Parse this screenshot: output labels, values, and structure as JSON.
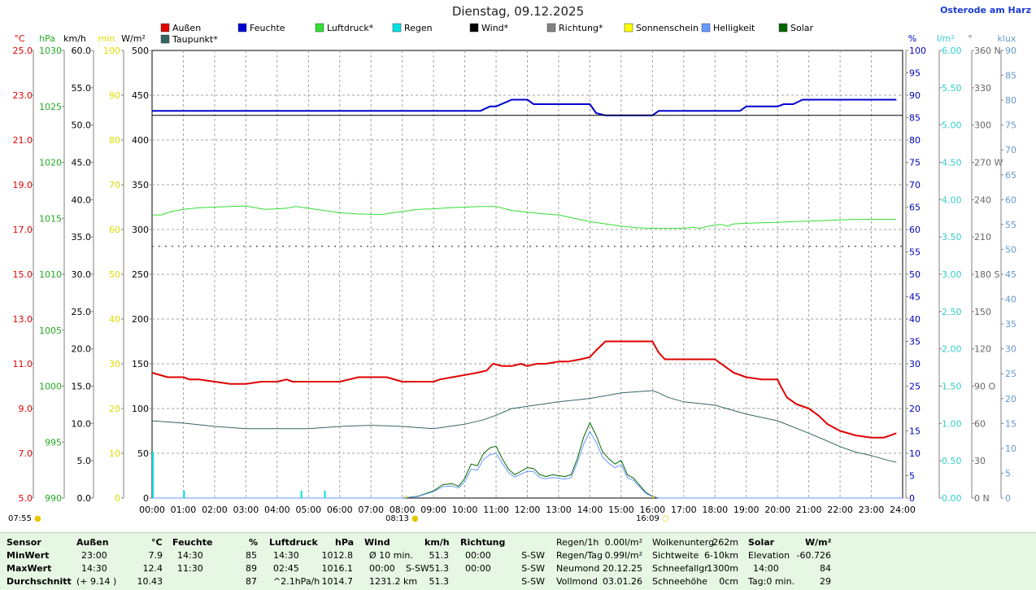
{
  "header": {
    "title": "Dienstag, 09.12.2025",
    "site": "Osterode am Harz"
  },
  "legend": [
    {
      "name": "Außen",
      "color": "#e00000"
    },
    {
      "name": "Feuchte",
      "color": "#0000d0"
    },
    {
      "name": "Luftdruck*",
      "color": "#33dd33"
    },
    {
      "name": "Regen",
      "color": "#00e0e0"
    },
    {
      "name": "Wind*",
      "color": "#000000"
    },
    {
      "name": "Richtung*",
      "color": "#808080"
    },
    {
      "name": "Sonnenschein",
      "color": "#ffff00"
    },
    {
      "name": "Helligkeit",
      "color": "#6699ff"
    },
    {
      "name": "Solar",
      "color": "#006600"
    },
    {
      "name": "Taupunkt*",
      "color": "#336666"
    }
  ],
  "axes": {
    "left": [
      {
        "unit": "°C",
        "color": "#e00000",
        "ticks": [
          "25.0",
          "23.0",
          "21.0",
          "19.0",
          "17.0",
          "15.0",
          "13.0",
          "11.0",
          "9.0",
          "7.0",
          "5.0"
        ]
      },
      {
        "unit": "hPa",
        "color": "#22aa22",
        "ticks": [
          "1030",
          "1025",
          "1020",
          "1015",
          "1010",
          "1005",
          "1000",
          "995",
          "990"
        ]
      },
      {
        "unit": "km/h",
        "color": "#000000",
        "ticks": [
          "60.0",
          "55.0",
          "50.0",
          "45.0",
          "40.0",
          "35.0",
          "30.0",
          "25.0",
          "20.0",
          "15.0",
          "10.0",
          "5.0",
          "0.0"
        ]
      },
      {
        "unit": "min",
        "color": "#dddd00",
        "ticks": [
          "100",
          "90",
          "80",
          "70",
          "60",
          "50",
          "40",
          "30",
          "20",
          "10",
          "0"
        ]
      },
      {
        "unit": "W/m²",
        "color": "#000000",
        "ticks": [
          "500",
          "450",
          "400",
          "350",
          "300",
          "250",
          "200",
          "150",
          "100",
          "50",
          "0"
        ]
      }
    ],
    "right": [
      {
        "unit": "%",
        "color": "#0000c0",
        "ticks": [
          "100",
          "95",
          "90",
          "85",
          "80",
          "75",
          "70",
          "65",
          "60",
          "55",
          "50",
          "45",
          "40",
          "35",
          "30",
          "25",
          "20",
          "15",
          "10",
          "5",
          "0"
        ]
      },
      {
        "unit": "l/m²",
        "color": "#33cccc",
        "ticks": [
          "6.00",
          "5.50",
          "5.00",
          "4.50",
          "4.00",
          "3.50",
          "3.00",
          "2.50",
          "2.00",
          "1.50",
          "1.00",
          "0.50",
          "0.00"
        ]
      },
      {
        "unit": "°",
        "color": "#666666",
        "ticks": [
          "360 N",
          "330",
          "300",
          "270 W",
          "240",
          "210",
          "180 S",
          "150",
          "120",
          "90 O",
          "60",
          "30",
          "0 N"
        ]
      },
      {
        "unit": "klux",
        "color": "#6699cc",
        "ticks": [
          "90",
          "85",
          "80",
          "75",
          "70",
          "65",
          "60",
          "55",
          "50",
          "45",
          "40",
          "35",
          "30",
          "25",
          "20",
          "15",
          "10",
          "5",
          "0"
        ]
      }
    ],
    "x_ticks": [
      "00:00",
      "01:00",
      "02:00",
      "03:00",
      "04:00",
      "05:00",
      "06:00",
      "07:00",
      "08:00",
      "09:00",
      "10:00",
      "11:00",
      "12:00",
      "13:00",
      "14:00",
      "15:00",
      "16:00",
      "17:00",
      "18:00",
      "19:00",
      "20:00",
      "21:00",
      "22:00",
      "23:00",
      "24:00"
    ]
  },
  "sun": {
    "sunrise_marker": "07:55",
    "sunrise": "08:13",
    "sunset": "16:09"
  },
  "chart_data": {
    "type": "line",
    "x_unit": "hours",
    "series": [
      {
        "name": "Außen",
        "unit": "°C",
        "x": [
          0,
          0.5,
          1,
          1.2,
          1.5,
          2,
          2.5,
          3,
          3.5,
          4,
          4.3,
          4.5,
          5,
          5.5,
          6,
          6.3,
          6.6,
          7,
          7.5,
          8,
          8.5,
          9,
          9.2,
          9.6,
          10,
          10.4,
          10.7,
          10.9,
          11.2,
          11.5,
          11.8,
          12,
          12.3,
          12.6,
          13,
          13.3,
          13.7,
          14,
          14.2,
          14.5,
          15,
          15.5,
          16,
          16.2,
          16.4,
          17,
          17.5,
          18,
          18.3,
          18.6,
          19,
          19.5,
          20,
          20.1,
          20.3,
          20.6,
          21,
          21.3,
          21.6,
          22,
          22.5,
          23,
          23.4,
          23.8
        ],
        "y": [
          10.6,
          10.4,
          10.4,
          10.3,
          10.3,
          10.2,
          10.1,
          10.1,
          10.2,
          10.2,
          10.3,
          10.2,
          10.2,
          10.2,
          10.2,
          10.3,
          10.4,
          10.4,
          10.4,
          10.2,
          10.2,
          10.2,
          10.3,
          10.4,
          10.5,
          10.6,
          10.7,
          11.0,
          10.9,
          10.9,
          11.0,
          10.9,
          11.0,
          11.0,
          11.1,
          11.1,
          11.2,
          11.3,
          11.6,
          12.0,
          12.0,
          12.0,
          12.0,
          11.5,
          11.2,
          11.2,
          11.2,
          11.2,
          10.9,
          10.6,
          10.4,
          10.3,
          10.3,
          10.0,
          9.5,
          9.2,
          9.0,
          8.7,
          8.3,
          8.0,
          7.8,
          7.7,
          7.7,
          7.9
        ]
      },
      {
        "name": "Taupunkt*",
        "unit": "°C",
        "x": [
          0,
          1,
          2,
          3,
          4,
          5,
          6,
          7,
          8,
          9,
          9.5,
          10,
          10.6,
          11,
          11.5,
          12,
          13,
          14,
          15,
          15.5,
          16,
          16.2,
          16.5,
          17,
          18,
          19,
          20,
          21,
          21.5,
          22,
          22.5,
          23,
          23.5,
          23.8
        ],
        "y": [
          8.45,
          8.35,
          8.2,
          8.1,
          8.1,
          8.1,
          8.2,
          8.25,
          8.2,
          8.1,
          8.2,
          8.3,
          8.5,
          8.7,
          9.0,
          9.1,
          9.3,
          9.45,
          9.7,
          9.75,
          9.8,
          9.7,
          9.5,
          9.3,
          9.15,
          8.75,
          8.45,
          7.9,
          7.6,
          7.3,
          7.05,
          6.9,
          6.7,
          6.6
        ]
      },
      {
        "name": "Feuchte",
        "unit": "%",
        "x": [
          0,
          10.5,
          10.8,
          11,
          11.5,
          12,
          12.2,
          12.5,
          13,
          13.5,
          14,
          14.2,
          14.5,
          15,
          15.5,
          16,
          16.2,
          16.5,
          17,
          17.5,
          18,
          18.8,
          19,
          19.5,
          20,
          20.2,
          20.5,
          20.8,
          21,
          21.5,
          22,
          22.5,
          23,
          23.5,
          23.8
        ],
        "y": [
          86.5,
          86.5,
          87.5,
          87.5,
          89,
          89,
          88,
          88,
          88,
          88,
          88,
          86,
          85.5,
          85.5,
          85.5,
          85.5,
          86.5,
          86.5,
          86.5,
          86.5,
          86.5,
          86.5,
          87.5,
          87.5,
          87.5,
          88,
          88,
          89,
          89,
          89,
          89,
          89,
          89,
          89,
          89
        ]
      },
      {
        "name": "Luftdruck*",
        "unit": "hPa",
        "x": [
          0,
          0.3,
          0.6,
          1,
          1.5,
          2,
          2.5,
          3,
          3.3,
          3.6,
          4,
          4.3,
          4.6,
          5,
          5.5,
          6,
          6.5,
          7,
          7.4,
          7.7,
          8,
          8.5,
          9,
          9.5,
          10,
          10.5,
          11,
          11.5,
          12,
          12.5,
          13,
          13.5,
          14,
          14.5,
          15,
          15.5,
          16,
          16.5,
          17,
          17.3,
          17.5,
          17.8,
          18,
          18.2,
          18.4,
          18.6,
          19,
          19.5,
          20,
          20.5,
          21,
          21.5,
          22,
          22.5,
          23,
          23.5,
          23.8
        ],
        "y": [
          1015.3,
          1015.3,
          1015.6,
          1015.8,
          1015.95,
          1016.0,
          1016.05,
          1016.1,
          1015.95,
          1015.8,
          1015.85,
          1015.9,
          1016.05,
          1015.9,
          1015.7,
          1015.5,
          1015.4,
          1015.35,
          1015.35,
          1015.5,
          1015.6,
          1015.8,
          1015.85,
          1015.95,
          1016.0,
          1016.05,
          1016.05,
          1015.7,
          1015.55,
          1015.4,
          1015.3,
          1015.0,
          1014.7,
          1014.5,
          1014.3,
          1014.15,
          1014.1,
          1014.1,
          1014.1,
          1014.2,
          1014.1,
          1014.3,
          1014.4,
          1014.45,
          1014.3,
          1014.5,
          1014.55,
          1014.6,
          1014.65,
          1014.7,
          1014.75,
          1014.8,
          1014.85,
          1014.9,
          1014.9,
          1014.9,
          1014.9
        ]
      },
      {
        "name": "Solar",
        "unit": "W/m²",
        "x": [
          0,
          8,
          8.5,
          9,
          9.3,
          9.6,
          9.8,
          10,
          10.2,
          10.4,
          10.6,
          10.8,
          11,
          11.2,
          11.4,
          11.6,
          11.8,
          12,
          12.2,
          12.4,
          12.6,
          12.8,
          13,
          13.2,
          13.4,
          13.6,
          13.8,
          14,
          14.2,
          14.4,
          14.6,
          14.8,
          15,
          15.2,
          15.4,
          15.6,
          15.8,
          16,
          16.2,
          16.4,
          24
        ],
        "y": [
          0,
          0,
          2,
          8,
          15,
          16,
          13,
          22,
          38,
          36,
          50,
          56,
          58,
          44,
          32,
          26,
          30,
          34,
          33,
          26,
          24,
          26,
          25,
          24,
          26,
          44,
          68,
          84,
          70,
          52,
          44,
          38,
          42,
          26,
          22,
          14,
          6,
          2,
          0,
          0,
          0
        ]
      },
      {
        "name": "Helligkeit",
        "unit": "klux",
        "x": [
          0,
          8,
          8.5,
          9,
          9.3,
          9.6,
          9.8,
          10,
          10.2,
          10.4,
          10.6,
          10.8,
          11,
          11.2,
          11.4,
          11.6,
          11.8,
          12,
          12.2,
          12.4,
          12.6,
          12.8,
          13,
          13.2,
          13.4,
          13.6,
          13.8,
          14,
          14.2,
          14.4,
          14.6,
          14.8,
          15,
          15.2,
          15.4,
          15.6,
          15.8,
          16,
          16.2,
          16.4,
          24
        ],
        "y": [
          0,
          0,
          0.3,
          1.3,
          2.3,
          2.4,
          2.0,
          3.3,
          5.8,
          5.6,
          7.8,
          8.7,
          9.0,
          7.0,
          5.1,
          4.2,
          4.8,
          5.4,
          5.3,
          4.1,
          3.9,
          4.1,
          4.0,
          3.8,
          4.1,
          7.1,
          10.8,
          13.4,
          11.2,
          8.3,
          7.0,
          6.1,
          6.7,
          4.1,
          3.5,
          2.2,
          0.9,
          0.3,
          0,
          0,
          0
        ]
      },
      {
        "name": "Wind*",
        "unit": "km/h",
        "x": [
          0,
          24
        ],
        "y": [
          51.3,
          51.3
        ]
      },
      {
        "name": "Richtung*",
        "unit": "°",
        "x": [
          0,
          24
        ],
        "y": [
          202.5,
          202.5
        ]
      },
      {
        "name": "Regen",
        "unit": "l/m²",
        "bars": [
          {
            "x": 0.0,
            "y": 0.62
          },
          {
            "x": 1.0,
            "y": 0.1
          },
          {
            "x": 4.75,
            "y": 0.1
          },
          {
            "x": 5.5,
            "y": 0.1
          }
        ]
      },
      {
        "name": "Sonnenschein",
        "unit": "min",
        "bars": [
          {
            "x": 8.1,
            "y": 0.5
          },
          {
            "x": 16.0,
            "y": 0.5
          }
        ]
      }
    ]
  },
  "stats": {
    "headers": {
      "sensor": "Sensor",
      "aussen": "Außen",
      "aussen_unit": "°C",
      "feuchte": "Feuchte",
      "feuchte_unit": "%",
      "druck": "Luftdruck",
      "druck_unit": "hPa",
      "wind": "Wind",
      "wind_unit": "km/h",
      "richtung": "Richtung"
    },
    "row_labels": [
      "MinWert",
      "MaxWert",
      "Durchschnitt"
    ],
    "aussen": [
      {
        "t": "23:00",
        "v": "7.9"
      },
      {
        "t": "14:30",
        "v": "12.4"
      },
      {
        "t": "(+ 9.14 )",
        "v": "10.43"
      }
    ],
    "feuchte": [
      {
        "t": "14:30",
        "v": "85"
      },
      {
        "t": "11:30",
        "v": "89"
      },
      {
        "t": "",
        "v": "87"
      }
    ],
    "druck": [
      {
        "t": "14:30",
        "v": "1012.8"
      },
      {
        "t": "02:45",
        "v": "1016.1"
      },
      {
        "t": "^2.1hPa/h",
        "v": "1014.7"
      }
    ],
    "wind": [
      {
        "t": "Ø 10 min.",
        "d": "",
        "v": "51.3"
      },
      {
        "t": "00:00",
        "d": "S-SW",
        "v": "51.3"
      },
      {
        "t": "1231.2 km",
        "d": "",
        "v": "51.3"
      }
    ],
    "richtung": [
      {
        "t": "00:00",
        "v": "S-SW"
      },
      {
        "t": "00:00",
        "v": "S-SW"
      },
      {
        "t": "",
        "v": "S-SW"
      }
    ],
    "misc1": [
      {
        "l": "Regen/1h",
        "v": "0.00l/m²"
      },
      {
        "l": "Regen/Tag",
        "v": "0.99l/m²"
      },
      {
        "l": "Neumond",
        "v": "20.12.25"
      },
      {
        "l": "Vollmond",
        "v": "03.01.26"
      }
    ],
    "misc2": [
      {
        "l": "Wolkenunterg",
        "v": "262m"
      },
      {
        "l": "Sichtweite",
        "v": "6-10km"
      },
      {
        "l": "Schneefallgr",
        "v": "1300m"
      },
      {
        "l": "Schneehöhe",
        "v": "0cm"
      }
    ],
    "solar": {
      "h": "Solar",
      "u": "W/m²",
      "rows": [
        {
          "l": "Elevation",
          "v": "-60.726"
        },
        {
          "l": "14:00",
          "v": "84"
        },
        {
          "l": "Tag:0 min.",
          "v": "29"
        }
      ]
    }
  }
}
